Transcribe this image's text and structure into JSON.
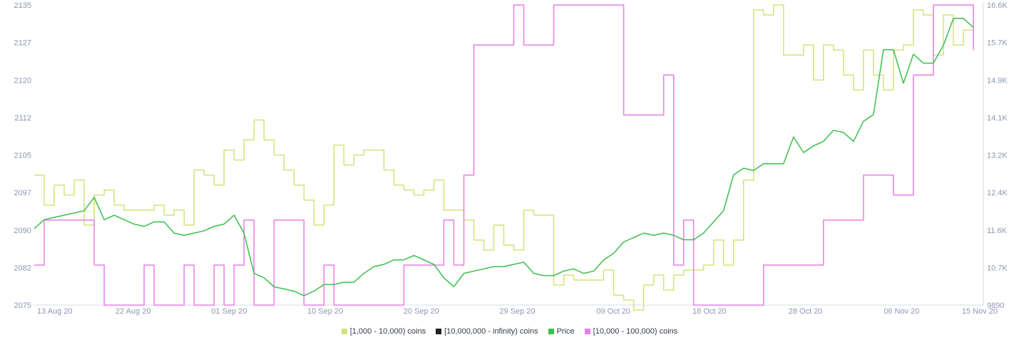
{
  "chart_data": {
    "type": "line",
    "title": "",
    "xlabel": "",
    "ylabel": "",
    "x_ticks": [
      "13 Aug 20",
      "22 Aug 20",
      "01 Sep 20",
      "10 Sep 20",
      "20 Sep 20",
      "29 Sep 20",
      "09 Oct 20",
      "18 Oct 20",
      "28 Oct 20",
      "06 Nov 20",
      "15 Nov 20"
    ],
    "x_range": [
      "2020-08-12",
      "2020-11-15"
    ],
    "left_axis": {
      "ticks": [
        "2075",
        "2082",
        "2090",
        "2097",
        "2105",
        "2112",
        "2120",
        "2127",
        "2135"
      ],
      "range": [
        2075,
        2135
      ]
    },
    "right_axis": {
      "ticks": [
        "9890",
        "10.7K",
        "11.6K",
        "12.4K",
        "13.2K",
        "14.1K",
        "14.9K",
        "15.7K",
        "16.6K"
      ],
      "range": [
        9890,
        16600
      ]
    },
    "legend_position": "bottom",
    "grid": false,
    "series": [
      {
        "name": "[1,000 - 10,000) coins",
        "color": "#cfe57a",
        "axis": "left",
        "step": true,
        "points": [
          [
            "2020-08-12",
            2101
          ],
          [
            "2020-08-13",
            2095
          ],
          [
            "2020-08-14",
            2099
          ],
          [
            "2020-08-15",
            2097
          ],
          [
            "2020-08-16",
            2100
          ],
          [
            "2020-08-17",
            2091
          ],
          [
            "2020-08-18",
            2097
          ],
          [
            "2020-08-19",
            2098
          ],
          [
            "2020-08-20",
            2095
          ],
          [
            "2020-08-21",
            2094
          ],
          [
            "2020-08-24",
            2095
          ],
          [
            "2020-08-25",
            2093
          ],
          [
            "2020-08-26",
            2094
          ],
          [
            "2020-08-27",
            2091
          ],
          [
            "2020-08-28",
            2102
          ],
          [
            "2020-08-29",
            2101
          ],
          [
            "2020-08-30",
            2099
          ],
          [
            "2020-08-31",
            2106
          ],
          [
            "2020-09-01",
            2104
          ],
          [
            "2020-09-02",
            2108
          ],
          [
            "2020-09-03",
            2112
          ],
          [
            "2020-09-04",
            2108
          ],
          [
            "2020-09-05",
            2105
          ],
          [
            "2020-09-06",
            2102
          ],
          [
            "2020-09-07",
            2099
          ],
          [
            "2020-09-08",
            2096
          ],
          [
            "2020-09-09",
            2091
          ],
          [
            "2020-09-10",
            2095
          ],
          [
            "2020-09-11",
            2107
          ],
          [
            "2020-09-12",
            2103
          ],
          [
            "2020-09-13",
            2105
          ],
          [
            "2020-09-14",
            2106
          ],
          [
            "2020-09-16",
            2102
          ],
          [
            "2020-09-17",
            2099
          ],
          [
            "2020-09-18",
            2098
          ],
          [
            "2020-09-19",
            2097
          ],
          [
            "2020-09-20",
            2098
          ],
          [
            "2020-09-21",
            2100
          ],
          [
            "2020-09-22",
            2094
          ],
          [
            "2020-09-24",
            2092
          ],
          [
            "2020-09-25",
            2088
          ],
          [
            "2020-09-26",
            2086
          ],
          [
            "2020-09-27",
            2091
          ],
          [
            "2020-09-28",
            2087
          ],
          [
            "2020-09-29",
            2086
          ],
          [
            "2020-09-30",
            2094
          ],
          [
            "2020-10-01",
            2093
          ],
          [
            "2020-10-03",
            2079
          ],
          [
            "2020-10-04",
            2081
          ],
          [
            "2020-10-05",
            2080
          ],
          [
            "2020-10-08",
            2082
          ],
          [
            "2020-10-09",
            2077
          ],
          [
            "2020-10-10",
            2076
          ],
          [
            "2020-10-11",
            2074
          ],
          [
            "2020-10-12",
            2079
          ],
          [
            "2020-10-13",
            2081
          ],
          [
            "2020-10-14",
            2078
          ],
          [
            "2020-10-15",
            2081
          ],
          [
            "2020-10-16",
            2082
          ],
          [
            "2020-10-18",
            2083
          ],
          [
            "2020-10-19",
            2088
          ],
          [
            "2020-10-20",
            2083
          ],
          [
            "2020-10-21",
            2088
          ],
          [
            "2020-10-22",
            2100
          ],
          [
            "2020-10-23",
            2134
          ],
          [
            "2020-10-24",
            2133
          ],
          [
            "2020-10-25",
            2135
          ],
          [
            "2020-10-26",
            2125
          ],
          [
            "2020-10-28",
            2127
          ],
          [
            "2020-10-29",
            2120
          ],
          [
            "2020-10-30",
            2127
          ],
          [
            "2020-10-31",
            2126
          ],
          [
            "2020-11-01",
            2121
          ],
          [
            "2020-11-02",
            2118
          ],
          [
            "2020-11-03",
            2126
          ],
          [
            "2020-11-04",
            2121
          ],
          [
            "2020-11-05",
            2118
          ],
          [
            "2020-11-06",
            2126
          ],
          [
            "2020-11-07",
            2127
          ],
          [
            "2020-11-08",
            2134
          ],
          [
            "2020-11-09",
            2133
          ],
          [
            "2020-11-10",
            2125
          ],
          [
            "2020-11-11",
            2133
          ],
          [
            "2020-11-12",
            2127
          ],
          [
            "2020-11-13",
            2130
          ],
          [
            "2020-11-14",
            2132
          ]
        ]
      },
      {
        "name": "[10,000,000 - infinity) coins",
        "color": "#222222",
        "axis": "left",
        "step": true,
        "points": []
      },
      {
        "name": "Price",
        "color": "#3cbf4b",
        "axis": "right",
        "step": false,
        "points": [
          [
            "2020-08-12",
            11600
          ],
          [
            "2020-08-13",
            11800
          ],
          [
            "2020-08-14",
            11850
          ],
          [
            "2020-08-15",
            11900
          ],
          [
            "2020-08-16",
            11950
          ],
          [
            "2020-08-17",
            12000
          ],
          [
            "2020-08-18",
            12300
          ],
          [
            "2020-08-19",
            11800
          ],
          [
            "2020-08-20",
            11900
          ],
          [
            "2020-08-21",
            11800
          ],
          [
            "2020-08-22",
            11700
          ],
          [
            "2020-08-23",
            11650
          ],
          [
            "2020-08-24",
            11750
          ],
          [
            "2020-08-25",
            11750
          ],
          [
            "2020-08-26",
            11500
          ],
          [
            "2020-08-27",
            11450
          ],
          [
            "2020-08-28",
            11500
          ],
          [
            "2020-08-29",
            11550
          ],
          [
            "2020-08-30",
            11650
          ],
          [
            "2020-08-31",
            11700
          ],
          [
            "2020-09-01",
            11900
          ],
          [
            "2020-09-02",
            11500
          ],
          [
            "2020-09-03",
            10600
          ],
          [
            "2020-09-04",
            10500
          ],
          [
            "2020-09-05",
            10300
          ],
          [
            "2020-09-06",
            10250
          ],
          [
            "2020-09-07",
            10200
          ],
          [
            "2020-09-08",
            10100
          ],
          [
            "2020-09-09",
            10200
          ],
          [
            "2020-09-10",
            10350
          ],
          [
            "2020-09-11",
            10350
          ],
          [
            "2020-09-12",
            10400
          ],
          [
            "2020-09-13",
            10400
          ],
          [
            "2020-09-14",
            10600
          ],
          [
            "2020-09-15",
            10750
          ],
          [
            "2020-09-16",
            10800
          ],
          [
            "2020-09-17",
            10900
          ],
          [
            "2020-09-18",
            10900
          ],
          [
            "2020-09-19",
            11000
          ],
          [
            "2020-09-20",
            10900
          ],
          [
            "2020-09-21",
            10800
          ],
          [
            "2020-09-22",
            10500
          ],
          [
            "2020-09-23",
            10300
          ],
          [
            "2020-09-24",
            10600
          ],
          [
            "2020-09-25",
            10650
          ],
          [
            "2020-09-26",
            10700
          ],
          [
            "2020-09-27",
            10750
          ],
          [
            "2020-09-28",
            10750
          ],
          [
            "2020-09-29",
            10800
          ],
          [
            "2020-09-30",
            10850
          ],
          [
            "2020-10-01",
            10600
          ],
          [
            "2020-10-02",
            10550
          ],
          [
            "2020-10-03",
            10550
          ],
          [
            "2020-10-04",
            10650
          ],
          [
            "2020-10-05",
            10700
          ],
          [
            "2020-10-06",
            10600
          ],
          [
            "2020-10-07",
            10650
          ],
          [
            "2020-10-08",
            10900
          ],
          [
            "2020-10-09",
            11050
          ],
          [
            "2020-10-10",
            11300
          ],
          [
            "2020-10-11",
            11400
          ],
          [
            "2020-10-12",
            11500
          ],
          [
            "2020-10-13",
            11450
          ],
          [
            "2020-10-14",
            11500
          ],
          [
            "2020-10-15",
            11450
          ],
          [
            "2020-10-16",
            11350
          ],
          [
            "2020-10-17",
            11350
          ],
          [
            "2020-10-18",
            11500
          ],
          [
            "2020-10-19",
            11750
          ],
          [
            "2020-10-20",
            12000
          ],
          [
            "2020-10-21",
            12800
          ],
          [
            "2020-10-22",
            12950
          ],
          [
            "2020-10-23",
            12900
          ],
          [
            "2020-10-24",
            13050
          ],
          [
            "2020-10-25",
            13050
          ],
          [
            "2020-10-26",
            13050
          ],
          [
            "2020-10-27",
            13650
          ],
          [
            "2020-10-28",
            13300
          ],
          [
            "2020-10-29",
            13450
          ],
          [
            "2020-10-30",
            13550
          ],
          [
            "2020-10-31",
            13800
          ],
          [
            "2020-11-01",
            13750
          ],
          [
            "2020-11-02",
            13550
          ],
          [
            "2020-11-03",
            14000
          ],
          [
            "2020-11-04",
            14150
          ],
          [
            "2020-11-05",
            15600
          ],
          [
            "2020-11-06",
            15600
          ],
          [
            "2020-11-07",
            14850
          ],
          [
            "2020-11-08",
            15500
          ],
          [
            "2020-11-09",
            15300
          ],
          [
            "2020-11-10",
            15300
          ],
          [
            "2020-11-11",
            15700
          ],
          [
            "2020-11-12",
            16300
          ],
          [
            "2020-11-13",
            16300
          ],
          [
            "2020-11-14",
            16100
          ]
        ]
      },
      {
        "name": "[10,000 - 100,000) coins",
        "color": "#e77ee8",
        "axis": "left",
        "step": true,
        "points": [
          [
            "2020-08-12",
            2083
          ],
          [
            "2020-08-13",
            2092
          ],
          [
            "2020-08-18",
            2083
          ],
          [
            "2020-08-19",
            2075
          ],
          [
            "2020-08-23",
            2083
          ],
          [
            "2020-08-24",
            2075
          ],
          [
            "2020-08-27",
            2083
          ],
          [
            "2020-08-28",
            2075
          ],
          [
            "2020-08-30",
            2083
          ],
          [
            "2020-08-31",
            2075
          ],
          [
            "2020-09-01",
            2083
          ],
          [
            "2020-09-02",
            2092
          ],
          [
            "2020-09-03",
            2075
          ],
          [
            "2020-09-05",
            2092
          ],
          [
            "2020-09-08",
            2075
          ],
          [
            "2020-09-10",
            2083
          ],
          [
            "2020-09-11",
            2075
          ],
          [
            "2020-09-18",
            2083
          ],
          [
            "2020-09-22",
            2092
          ],
          [
            "2020-09-23",
            2083
          ],
          [
            "2020-09-24",
            2101
          ],
          [
            "2020-09-25",
            2127
          ],
          [
            "2020-09-29",
            2135
          ],
          [
            "2020-09-30",
            2127
          ],
          [
            "2020-10-03",
            2135
          ],
          [
            "2020-10-10",
            2113
          ],
          [
            "2020-10-14",
            2121
          ],
          [
            "2020-10-15",
            2083
          ],
          [
            "2020-10-16",
            2092
          ],
          [
            "2020-10-17",
            2075
          ],
          [
            "2020-10-24",
            2083
          ],
          [
            "2020-10-30",
            2092
          ],
          [
            "2020-11-03",
            2101
          ],
          [
            "2020-11-06",
            2097
          ],
          [
            "2020-11-08",
            2121
          ],
          [
            "2020-11-10",
            2135
          ],
          [
            "2020-11-14",
            2126
          ]
        ]
      }
    ]
  }
}
